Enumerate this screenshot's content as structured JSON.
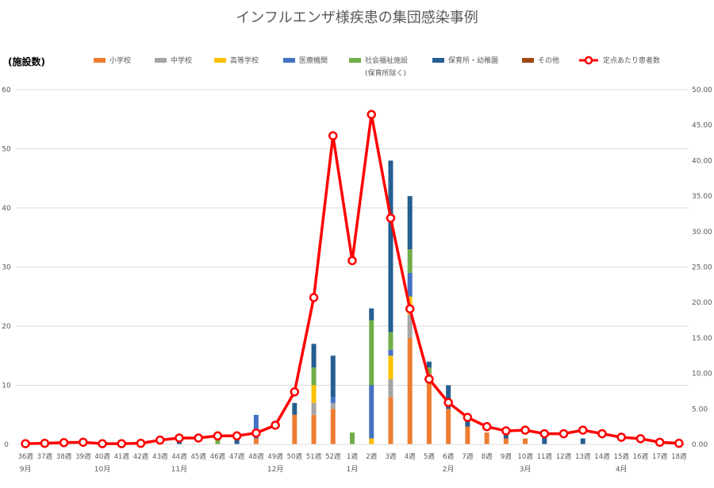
{
  "chart_data": {
    "type": "bar",
    "title": "インフルエンザ様疾患の集団感染事例",
    "ylabel": "(施設数)",
    "ylim": [
      0,
      60
    ],
    "y2lim": [
      0,
      50
    ],
    "yticks": [
      "0",
      "10",
      "20",
      "30",
      "40",
      "50",
      "60"
    ],
    "y2ticks": [
      "0.00",
      "5.00",
      "10.00",
      "15.00",
      "20.00",
      "25.00",
      "30.00",
      "35.00",
      "40.00",
      "45.00",
      "50.00"
    ],
    "grid": true,
    "legend_position": "top",
    "categories": [
      "36週",
      "37週",
      "38週",
      "39週",
      "40週",
      "41週",
      "42週",
      "43週",
      "44週",
      "45週",
      "46週",
      "47週",
      "48週",
      "49週",
      "50週",
      "51週",
      "52週",
      "1週",
      "2週",
      "3週",
      "4週",
      "5週",
      "6週",
      "7週",
      "8週",
      "9週",
      "10週",
      "11週",
      "12週",
      "13週",
      "14週",
      "15週",
      "16週",
      "17週",
      "18週"
    ],
    "months": [
      {
        "label": "9月",
        "index": 0
      },
      {
        "label": "10月",
        "index": 4
      },
      {
        "label": "11月",
        "index": 8
      },
      {
        "label": "12月",
        "index": 13
      },
      {
        "label": "1月",
        "index": 17
      },
      {
        "label": "2月",
        "index": 22
      },
      {
        "label": "3月",
        "index": 26
      },
      {
        "label": "4月",
        "index": 31
      }
    ],
    "series": [
      {
        "name": "小学校",
        "color": "#ED7D31",
        "values": [
          0,
          0,
          0,
          0,
          0,
          0,
          0,
          0,
          0,
          0,
          0,
          0,
          1,
          0,
          5,
          5,
          6,
          0,
          0,
          8,
          18,
          12,
          6,
          3,
          2,
          1,
          1,
          0,
          0,
          0,
          0,
          0,
          0,
          0,
          0
        ]
      },
      {
        "name": "中学校",
        "color": "#A5A5A5",
        "values": [
          0,
          0,
          0,
          0,
          0,
          0,
          0,
          0,
          0,
          0,
          0,
          0,
          0,
          0,
          0,
          2,
          1,
          0,
          0,
          3,
          4,
          0,
          0,
          0,
          0,
          0,
          0,
          0,
          0,
          0,
          0,
          0,
          0,
          0,
          0
        ]
      },
      {
        "name": "高等学校",
        "color": "#FFC000",
        "values": [
          0,
          0,
          0,
          0,
          0,
          0,
          0,
          0,
          0,
          0,
          0,
          0,
          0,
          0,
          0,
          3,
          0,
          0,
          1,
          4,
          3,
          0,
          0,
          0,
          0,
          0,
          0,
          0,
          0,
          0,
          0,
          0,
          0,
          0,
          0
        ]
      },
      {
        "name": "医療機関",
        "color": "#4472C4",
        "values": [
          0,
          0,
          0,
          0,
          0,
          0,
          0,
          0,
          0,
          0,
          0,
          0,
          4,
          0,
          0,
          0,
          1,
          0,
          9,
          1,
          4,
          0,
          0,
          0,
          0,
          0,
          0,
          0,
          0,
          0,
          0,
          0,
          0,
          0,
          0
        ]
      },
      {
        "name": "社会福祉施設",
        "sublabel": "(保育所除く)",
        "color": "#70AD47",
        "values": [
          0,
          0,
          0,
          0,
          0,
          0,
          0,
          0,
          0,
          0,
          1,
          0,
          0,
          0,
          0,
          3,
          0,
          2,
          11,
          3,
          4,
          1,
          0,
          0,
          0,
          0,
          0,
          0,
          0,
          0,
          0,
          0,
          0,
          0,
          0
        ]
      },
      {
        "name": "保育所・幼稚園",
        "color": "#255E91",
        "values": [
          0,
          0,
          0,
          0,
          0,
          0,
          0,
          0,
          1,
          0,
          0,
          1,
          0,
          0,
          2,
          4,
          7,
          0,
          2,
          29,
          9,
          1,
          4,
          1,
          0,
          1,
          0,
          2,
          0,
          1,
          0,
          0,
          0,
          0,
          0
        ]
      },
      {
        "name": "その他",
        "color": "#9E480E",
        "values": [
          0,
          0,
          0,
          0,
          0,
          0,
          0,
          0,
          0,
          0,
          0,
          0,
          0,
          0,
          0,
          0,
          0,
          0,
          0,
          0,
          0,
          0,
          0,
          0,
          0,
          0,
          0,
          0,
          0,
          0,
          0,
          0,
          0,
          0,
          0
        ]
      }
    ],
    "line": {
      "name": "定点あたり患者数",
      "color": "#FF0000",
      "values": [
        0.1,
        0.15,
        0.25,
        0.3,
        0.1,
        0.1,
        0.15,
        0.6,
        0.9,
        0.9,
        1.2,
        1.2,
        1.6,
        2.7,
        7.4,
        20.7,
        43.5,
        25.9,
        46.5,
        31.9,
        19.1,
        9.2,
        5.9,
        3.8,
        2.5,
        1.9,
        2.0,
        1.5,
        1.5,
        2.0,
        1.5,
        1.0,
        0.8,
        0.3,
        0.15
      ]
    }
  }
}
